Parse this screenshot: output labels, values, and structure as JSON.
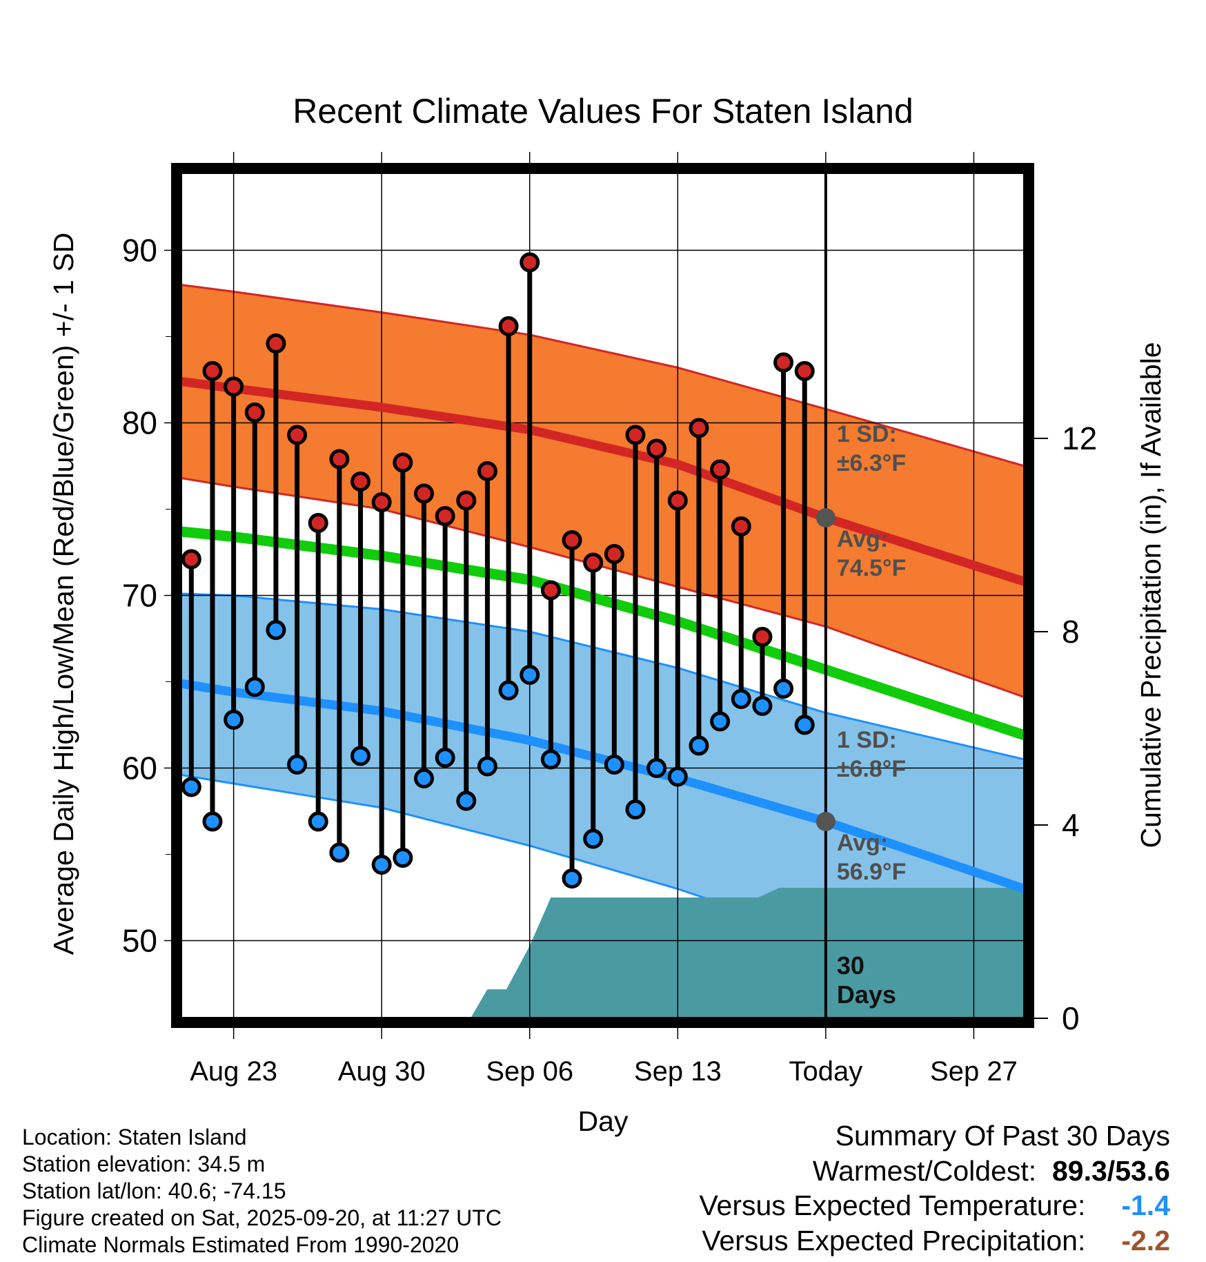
{
  "chart_data": {
    "type": "line",
    "title": "Recent Climate Values For Staten Island",
    "xlabel": "Day",
    "ylabel": "Average Daily High/Low/Mean (Red/Blue/Green) +/- 1 SD",
    "y2label": "Cumulative Precipitation (in), If Available",
    "xlim": [
      -0.5,
      39.4
    ],
    "ylim": [
      45.5,
      94.5
    ],
    "y2lim": [
      0,
      17.5
    ],
    "grid": true,
    "x_ticks": [
      {
        "x": 2,
        "label": "Aug 23"
      },
      {
        "x": 9,
        "label": "Aug 30"
      },
      {
        "x": 16,
        "label": "Sep 06"
      },
      {
        "x": 23,
        "label": "Sep 13"
      },
      {
        "x": 30,
        "label": "Today"
      },
      {
        "x": 37,
        "label": "Sep 27"
      }
    ],
    "y_ticks": [
      50,
      60,
      70,
      80,
      90
    ],
    "y2_ticks": [
      0,
      4,
      8,
      12
    ],
    "today_x": 30,
    "normals": {
      "x": [
        -0.5,
        2,
        9,
        16,
        23,
        30,
        39.4
      ],
      "high_avg": [
        82.4,
        82.0,
        80.9,
        79.6,
        77.6,
        74.5,
        70.8
      ],
      "high_upper": [
        88.0,
        87.6,
        86.4,
        85.1,
        83.2,
        80.8,
        77.5
      ],
      "high_lower": [
        76.8,
        76.3,
        75.0,
        72.8,
        70.5,
        68.2,
        64.1
      ],
      "mean": [
        73.7,
        73.4,
        72.3,
        70.9,
        68.5,
        65.7,
        61.9
      ],
      "low_avg": [
        64.9,
        64.4,
        63.3,
        61.6,
        59.4,
        56.9,
        53.0
      ],
      "low_upper": [
        70.1,
        70.0,
        69.2,
        67.9,
        65.8,
        63.2,
        60.5
      ],
      "low_lower": [
        59.6,
        59.1,
        57.7,
        55.5,
        53.0,
        50.1,
        45.5
      ]
    },
    "daily": {
      "x": [
        0,
        1,
        2,
        3,
        4,
        5,
        6,
        7,
        8,
        9,
        10,
        11,
        12,
        13,
        14,
        15,
        16,
        17,
        18,
        19,
        20,
        21,
        22,
        23,
        24,
        25,
        26,
        27,
        28,
        29
      ],
      "high": [
        72.1,
        83.0,
        82.1,
        80.6,
        84.6,
        79.3,
        74.2,
        77.9,
        76.6,
        75.4,
        77.7,
        75.9,
        74.6,
        75.5,
        77.2,
        85.6,
        89.3,
        70.3,
        73.2,
        71.9,
        72.4,
        79.3,
        78.5,
        75.5,
        79.7,
        77.3,
        74.0,
        67.6,
        83.5,
        83.0
      ],
      "low": [
        58.9,
        56.9,
        62.8,
        64.7,
        68.0,
        60.2,
        56.9,
        55.1,
        60.7,
        54.4,
        54.8,
        59.4,
        60.6,
        58.1,
        60.1,
        64.5,
        65.4,
        60.5,
        53.6,
        55.9,
        60.2,
        57.6,
        60.0,
        59.5,
        61.3,
        62.7,
        64.0,
        63.6,
        64.6,
        62.5
      ]
    },
    "precipitation": {
      "x": [
        -0.5,
        13.2,
        14.0,
        14.9,
        16.0,
        17.0,
        26.8,
        27.8,
        39.4
      ],
      "cumulative": [
        0,
        0,
        0.6,
        0.6,
        1.5,
        2.5,
        2.5,
        2.7,
        2.7
      ]
    },
    "annotations": {
      "high_sd": [
        "1 SD:",
        "±6.3°F"
      ],
      "high_avg": [
        "Avg:",
        "74.5°F"
      ],
      "low_sd": [
        "1 SD:",
        "±6.8°F"
      ],
      "low_avg": [
        "Avg:",
        "56.9°F"
      ],
      "precip_window": [
        "30",
        "Days"
      ]
    },
    "colors": {
      "high_band": "#f47b2f",
      "high_line": "#d22625",
      "low_band": "#85c2e9",
      "low_line": "#1e90ff",
      "mean_line": "#11cc0b",
      "precip": "#4a9aa2",
      "high_marker": "#d22625",
      "low_marker": "#1e90ff",
      "annotation": "#4f4f4f"
    }
  },
  "info": {
    "location": "Location: Staten Island",
    "elevation": "Station elevation: 34.5 m",
    "latlon": "Station lat/lon: 40.6; -74.15",
    "created": "Figure created on Sat, 2025-09-20, at 11:27 UTC",
    "normals": "Climate Normals Estimated From 1990-2020"
  },
  "summary": {
    "title": "Summary Of Past 30 Days",
    "warm_cold_label": "Warmest/Coldest:",
    "warmest": "89.3",
    "separator": "/",
    "coldest": "53.6",
    "temp_label": "Versus Expected Temperature:",
    "temp_value": "-1.4",
    "temp_color": "#1e90ff",
    "precip_label": "Versus Expected Precipitation:",
    "precip_value": "-2.2",
    "precip_color": "#a0522d"
  }
}
